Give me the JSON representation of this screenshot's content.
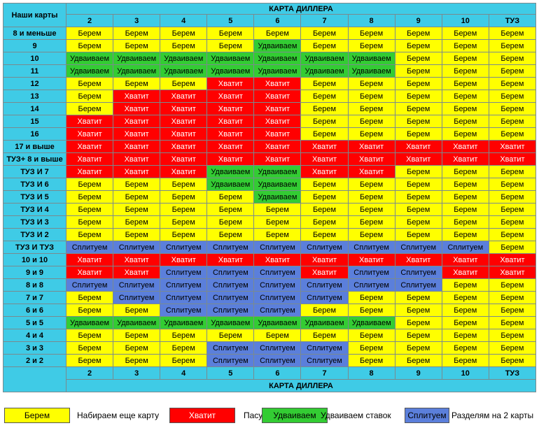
{
  "table": {
    "corner": "Наши карты",
    "dealer_header": "КАРТА ДИЛЛЕРА",
    "columns": [
      "2",
      "3",
      "4",
      "5",
      "6",
      "7",
      "8",
      "9",
      "10",
      "ТУЗ"
    ],
    "rows": [
      {
        "label": "8 и меньше",
        "cells": [
          "Берем",
          "Берем",
          "Берем",
          "Берем",
          "Берем",
          "Берем",
          "Берем",
          "Берем",
          "Берем",
          "Берем"
        ]
      },
      {
        "label": "9",
        "cells": [
          "Берем",
          "Берем",
          "Берем",
          "Берем",
          "Удваиваем",
          "Берем",
          "Берем",
          "Берем",
          "Берем",
          "Берем"
        ]
      },
      {
        "label": "10",
        "cells": [
          "Удваиваем",
          "Удваиваем",
          "Удваиваем",
          "Удваиваем",
          "Удваиваем",
          "Удваиваем",
          "Удваиваем",
          "Берем",
          "Берем",
          "Берем"
        ]
      },
      {
        "label": "11",
        "cells": [
          "Удваиваем",
          "Удваиваем",
          "Удваиваем",
          "Удваиваем",
          "Удваиваем",
          "Удваиваем",
          "Удваиваем",
          "Берем",
          "Берем",
          "Берем"
        ]
      },
      {
        "label": "12",
        "cells": [
          "Берем",
          "Берем",
          "Берем",
          "Хватит",
          "Хватит",
          "Берем",
          "Берем",
          "Берем",
          "Берем",
          "Берем"
        ]
      },
      {
        "label": "13",
        "cells": [
          "Берем",
          "Хватит",
          "Хватит",
          "Хватит",
          "Хватит",
          "Берем",
          "Берем",
          "Берем",
          "Берем",
          "Берем"
        ]
      },
      {
        "label": "14",
        "cells": [
          "Берем",
          "Хватит",
          "Хватит",
          "Хватит",
          "Хватит",
          "Берем",
          "Берем",
          "Берем",
          "Берем",
          "Берем"
        ]
      },
      {
        "label": "15",
        "cells": [
          "Хватит",
          "Хватит",
          "Хватит",
          "Хватит",
          "Хватит",
          "Берем",
          "Берем",
          "Берем",
          "Берем",
          "Берем"
        ]
      },
      {
        "label": "16",
        "cells": [
          "Хватит",
          "Хватит",
          "Хватит",
          "Хватит",
          "Хватит",
          "Берем",
          "Берем",
          "Берем",
          "Берем",
          "Берем"
        ]
      },
      {
        "label": "17 и выше",
        "cells": [
          "Хватит",
          "Хватит",
          "Хватит",
          "Хватит",
          "Хватит",
          "Хватит",
          "Хватит",
          "Хватит",
          "Хватит",
          "Хватит"
        ]
      },
      {
        "label": "ТУЗ+ 8 и выше",
        "cells": [
          "Хватит",
          "Хватит",
          "Хватит",
          "Хватит",
          "Хватит",
          "Хватит",
          "Хватит",
          "Хватит",
          "Хватит",
          "Хватит"
        ]
      },
      {
        "label": "ТУЗ И 7",
        "cells": [
          "Хватит",
          "Хватит",
          "Хватит",
          "Удваиваем",
          "Удваиваем",
          "Хватит",
          "Хватит",
          "Берем",
          "Берем",
          "Берем"
        ]
      },
      {
        "label": "ТУЗ И 6",
        "cells": [
          "Берем",
          "Берем",
          "Берем",
          "Удваиваем",
          "Удваиваем",
          "Берем",
          "Берем",
          "Берем",
          "Берем",
          "Берем"
        ]
      },
      {
        "label": "ТУЗ И 5",
        "cells": [
          "Берем",
          "Берем",
          "Берем",
          "Берем",
          "Удваиваем",
          "Берем",
          "Берем",
          "Берем",
          "Берем",
          "Берем"
        ]
      },
      {
        "label": "ТУЗ И 4",
        "cells": [
          "Берем",
          "Берем",
          "Берем",
          "Берем",
          "Берем",
          "Берем",
          "Берем",
          "Берем",
          "Берем",
          "Берем"
        ]
      },
      {
        "label": "ТУЗ И 3",
        "cells": [
          "Берем",
          "Берем",
          "Берем",
          "Берем",
          "Берем",
          "Берем",
          "Берем",
          "Берем",
          "Берем",
          "Берем"
        ]
      },
      {
        "label": "ТУЗ И 2",
        "cells": [
          "Берем",
          "Берем",
          "Берем",
          "Берем",
          "Берем",
          "Берем",
          "Берем",
          "Берем",
          "Берем",
          "Берем"
        ]
      },
      {
        "label": "ТУЗ И ТУЗ",
        "cells": [
          "Сплитуем",
          "Сплитуем",
          "Сплитуем",
          "Сплитуем",
          "Сплитуем",
          "Сплитуем",
          "Сплитуем",
          "Сплитуем",
          "Сплитуем",
          "Берем"
        ]
      },
      {
        "label": "10 и 10",
        "cells": [
          "Хватит",
          "Хватит",
          "Хватит",
          "Хватит",
          "Хватит",
          "Хватит",
          "Хватит",
          "Хватит",
          "Хватит",
          "Хватит"
        ]
      },
      {
        "label": "9 и 9",
        "cells": [
          "Хватит",
          "Хватит",
          "Сплитуем",
          "Сплитуем",
          "Сплитуем",
          "Хватит",
          "Сплитуем",
          "Сплитуем",
          "Хватит",
          "Хватит"
        ]
      },
      {
        "label": "8 и 8",
        "cells": [
          "Сплитуем",
          "Сплитуем",
          "Сплитуем",
          "Сплитуем",
          "Сплитуем",
          "Сплитуем",
          "Сплитуем",
          "Сплитуем",
          "Берем",
          "Берем"
        ]
      },
      {
        "label": "7 и 7",
        "cells": [
          "Берем",
          "Сплитуем",
          "Сплитуем",
          "Сплитуем",
          "Сплитуем",
          "Сплитуем",
          "Берем",
          "Берем",
          "Берем",
          "Берем"
        ]
      },
      {
        "label": "6 и 6",
        "cells": [
          "Берем",
          "Берем",
          "Сплитуем",
          "Сплитуем",
          "Сплитуем",
          "Берем",
          "Берем",
          "Берем",
          "Берем",
          "Берем"
        ]
      },
      {
        "label": "5 и 5",
        "cells": [
          "Удваиваем",
          "Удваиваем",
          "Удваиваем",
          "Удваиваем",
          "Удваиваем",
          "Удваиваем",
          "Удваиваем",
          "Берем",
          "Берем",
          "Берем"
        ]
      },
      {
        "label": "4 и 4",
        "cells": [
          "Берем",
          "Берем",
          "Берем",
          "Берем",
          "Берем",
          "Берем",
          "Берем",
          "Берем",
          "Берем",
          "Берем"
        ]
      },
      {
        "label": "3 и 3",
        "cells": [
          "Берем",
          "Берем",
          "Берем",
          "Сплитуем",
          "Сплитуем",
          "Сплитуем",
          "Берем",
          "Берем",
          "Берем",
          "Берем"
        ]
      },
      {
        "label": "2 и 2",
        "cells": [
          "Берем",
          "Берем",
          "Берем",
          "Сплитуем",
          "Сплитуем",
          "Сплитуем",
          "Берем",
          "Берем",
          "Берем",
          "Берем"
        ]
      }
    ]
  },
  "legend": [
    {
      "label": "Берем",
      "color": "#ffff00",
      "text_color": "#000000",
      "text": "Набираем еще карту"
    },
    {
      "label": "Хватит",
      "color": "#ff0000",
      "text_color": "#ffffff",
      "text": "Пасуем"
    },
    {
      "label": "Удваиваем",
      "color": "#33cc33",
      "text_color": "#000000",
      "text": "Удваиваем ставок"
    },
    {
      "label": "Сплитуем",
      "color": "#5b7fdb",
      "text_color": "#000000",
      "text": "Разделям на 2 карты"
    }
  ]
}
